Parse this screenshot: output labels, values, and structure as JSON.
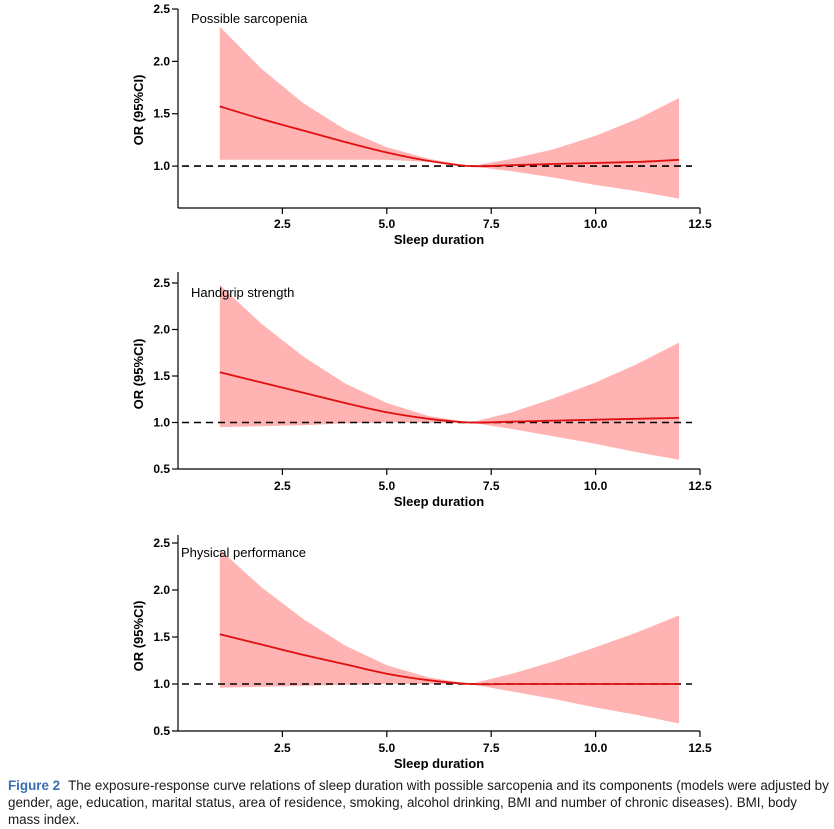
{
  "colors": {
    "band": "#ffb3b3",
    "curve": "#e01010",
    "reference": "#000000",
    "caption_label": "#3a6fb0"
  },
  "chart_data": [
    {
      "type": "line",
      "title": "Possible sarcopenia",
      "xlabel": "Sleep duration",
      "ylabel": "OR (95%CI)",
      "xlim": [
        0,
        12.5
      ],
      "ylim": [
        0.6,
        2.5
      ],
      "xticks": [
        "2.5",
        "5.0",
        "7.5",
        "10.0",
        "12.5"
      ],
      "yticks": [
        "1.0",
        "1.5",
        "2.0",
        "2.5"
      ],
      "reference_y": 1.0,
      "series": [
        {
          "name": "OR",
          "x": [
            1,
            2,
            3,
            4,
            5,
            6,
            7,
            8,
            9,
            10,
            11,
            12
          ],
          "y": [
            1.57,
            1.45,
            1.34,
            1.23,
            1.13,
            1.05,
            1.0,
            1.01,
            1.02,
            1.03,
            1.04,
            1.06
          ]
        },
        {
          "name": "95% CI lower",
          "x": [
            1,
            2,
            3,
            4,
            5,
            6,
            7,
            8,
            9,
            10,
            11,
            12
          ],
          "y": [
            1.06,
            1.06,
            1.06,
            1.06,
            1.06,
            1.04,
            1.0,
            0.95,
            0.89,
            0.82,
            0.76,
            0.69
          ]
        },
        {
          "name": "95% CI upper",
          "x": [
            1,
            2,
            3,
            4,
            5,
            6,
            7,
            8,
            9,
            10,
            11,
            12
          ],
          "y": [
            2.33,
            1.93,
            1.6,
            1.35,
            1.18,
            1.07,
            1.0,
            1.07,
            1.16,
            1.29,
            1.45,
            1.65
          ]
        }
      ]
    },
    {
      "type": "line",
      "title": "Handgrip strength",
      "xlabel": "Sleep duration",
      "ylabel": "OR (95%CI)",
      "xlim": [
        0,
        12.5
      ],
      "ylim": [
        0.5,
        2.5
      ],
      "xticks": [
        "2.5",
        "5.0",
        "7.5",
        "10.0",
        "12.5"
      ],
      "yticks": [
        "0.5",
        "1.0",
        "1.5",
        "2.0",
        "2.5"
      ],
      "reference_y": 1.0,
      "series": [
        {
          "name": "OR",
          "x": [
            1,
            2,
            3,
            4,
            5,
            6,
            7,
            8,
            9,
            10,
            11,
            12
          ],
          "y": [
            1.54,
            1.43,
            1.32,
            1.21,
            1.11,
            1.04,
            1.0,
            1.01,
            1.02,
            1.03,
            1.04,
            1.05
          ]
        },
        {
          "name": "95% CI lower",
          "x": [
            1,
            2,
            3,
            4,
            5,
            6,
            7,
            8,
            9,
            10,
            11,
            12
          ],
          "y": [
            0.95,
            0.96,
            0.97,
            0.99,
            1.0,
            1.0,
            1.0,
            0.93,
            0.85,
            0.77,
            0.68,
            0.6
          ]
        },
        {
          "name": "95% CI upper",
          "x": [
            1,
            2,
            3,
            4,
            5,
            6,
            7,
            8,
            9,
            10,
            11,
            12
          ],
          "y": [
            2.48,
            2.06,
            1.71,
            1.42,
            1.21,
            1.07,
            1.0,
            1.11,
            1.26,
            1.43,
            1.63,
            1.86
          ]
        }
      ]
    },
    {
      "type": "line",
      "title": "Physical performance",
      "xlabel": "Sleep duration",
      "ylabel": "OR (95%CI)",
      "xlim": [
        0,
        12.5
      ],
      "ylim": [
        0.5,
        2.5
      ],
      "xticks": [
        "2.5",
        "5.0",
        "7.5",
        "10.0",
        "12.5"
      ],
      "yticks": [
        "0.5",
        "1.0",
        "1.5",
        "2.0",
        "2.5"
      ],
      "reference_y": 1.0,
      "series": [
        {
          "name": "OR",
          "x": [
            1,
            2,
            3,
            4,
            5,
            6,
            7,
            8,
            9,
            10,
            11,
            12
          ],
          "y": [
            1.53,
            1.42,
            1.31,
            1.21,
            1.11,
            1.04,
            1.0,
            1.0,
            1.0,
            1.0,
            1.0,
            1.0
          ]
        },
        {
          "name": "95% CI lower",
          "x": [
            1,
            2,
            3,
            4,
            5,
            6,
            7,
            8,
            9,
            10,
            11,
            12
          ],
          "y": [
            0.96,
            0.97,
            0.98,
            0.99,
            1.0,
            1.0,
            1.0,
            0.92,
            0.84,
            0.75,
            0.67,
            0.58
          ]
        },
        {
          "name": "95% CI upper",
          "x": [
            1,
            2,
            3,
            4,
            5,
            6,
            7,
            8,
            9,
            10,
            11,
            12
          ],
          "y": [
            2.43,
            2.03,
            1.69,
            1.41,
            1.2,
            1.07,
            1.0,
            1.11,
            1.24,
            1.39,
            1.55,
            1.73
          ]
        }
      ]
    }
  ],
  "caption": {
    "label": "Figure 2",
    "text": "The exposure-response curve relations of sleep duration with possible sarcopenia and its components (models were adjusted by gender, age, education, marital status, area of residence, smoking, alcohol drinking, BMI and number of chronic diseases). BMI, body mass index."
  }
}
